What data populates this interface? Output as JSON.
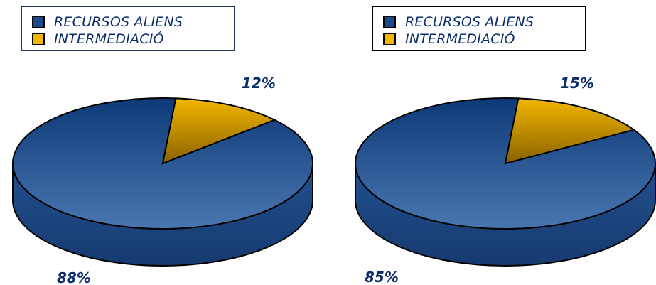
{
  "colors": {
    "blue": "#1a4a8a",
    "blue_dark": "#0f2f5c",
    "orange": "#f2b600",
    "orange_dark": "#8a6200",
    "text_blue": "#0b2e6b",
    "outline": "#000000"
  },
  "chart_data": [
    {
      "type": "pie",
      "style": "3d",
      "legend": [
        "RECURSOS ALIENS",
        "INTERMEDIACIÓ"
      ],
      "slices": [
        {
          "name": "RECURSOS ALIENS",
          "value": 88,
          "label": "88%"
        },
        {
          "name": "INTERMEDIACIÓ",
          "value": 12,
          "label": "12%"
        }
      ]
    },
    {
      "type": "pie",
      "style": "3d",
      "legend": [
        "RECURSOS ALIENS",
        "INTERMEDIACIÓ"
      ],
      "slices": [
        {
          "name": "RECURSOS ALIENS",
          "value": 85,
          "label": "85%"
        },
        {
          "name": "INTERMEDIACIÓ",
          "value": 15,
          "label": "15%"
        }
      ]
    }
  ]
}
